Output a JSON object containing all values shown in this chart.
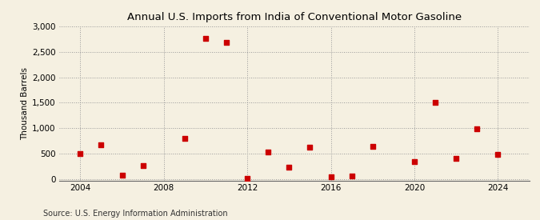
{
  "title": "Annual U.S. Imports from India of Conventional Motor Gasoline",
  "ylabel": "Thousand Barrels",
  "source": "Source: U.S. Energy Information Administration",
  "background_color": "#f5f0e1",
  "marker_color": "#cc0000",
  "xlim": [
    2003.0,
    2025.5
  ],
  "ylim": [
    -30,
    3000
  ],
  "yticks": [
    0,
    500,
    1000,
    1500,
    2000,
    2500,
    3000
  ],
  "xticks": [
    2004,
    2008,
    2012,
    2016,
    2020,
    2024
  ],
  "data": {
    "2004": 500,
    "2005": 670,
    "2006": 70,
    "2007": 260,
    "2009": 790,
    "2010": 2760,
    "2011": 2680,
    "2012": 10,
    "2013": 530,
    "2014": 230,
    "2015": 620,
    "2016": 40,
    "2017": 50,
    "2018": 640,
    "2020": 340,
    "2021": 1510,
    "2022": 400,
    "2023": 980,
    "2024": 480
  }
}
